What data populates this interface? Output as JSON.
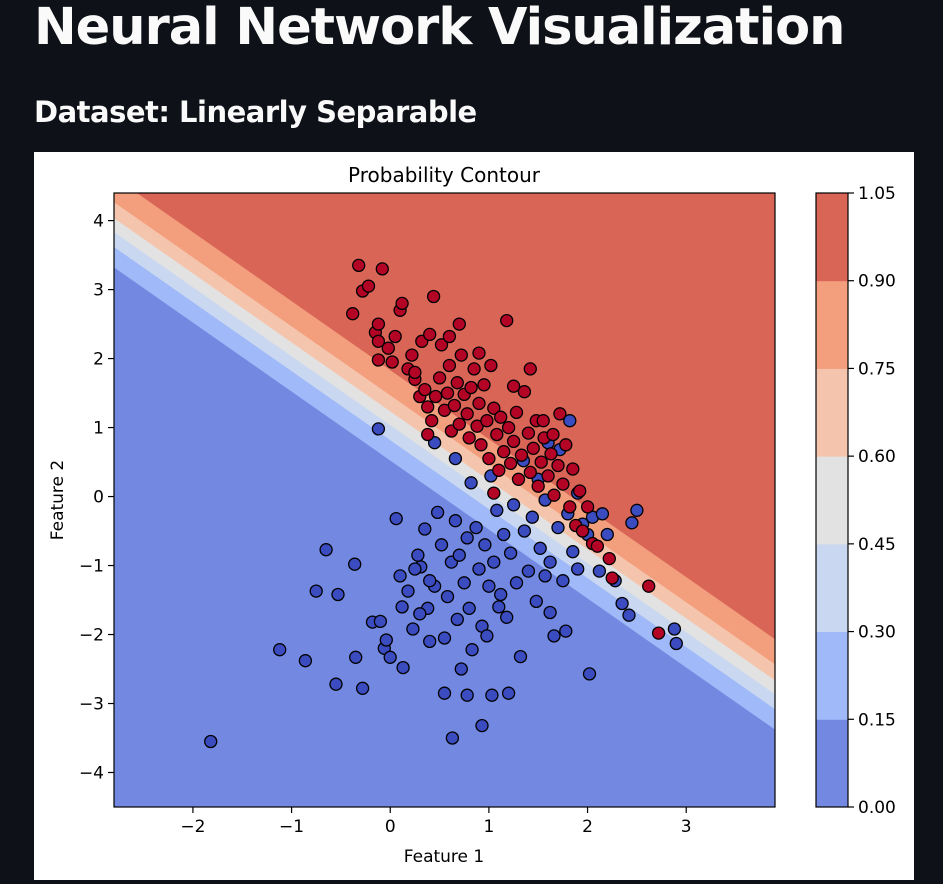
{
  "page": {
    "title": "Neural Network Visualization",
    "dataset_heading": "Dataset: Linearly Separable"
  },
  "chart_data": {
    "type": "scatter",
    "title": "Probability Contour",
    "xlabel": "Feature 1",
    "ylabel": "Feature 2",
    "xlim": [
      -2.8,
      3.9
    ],
    "ylim": [
      -4.5,
      4.4
    ],
    "x_ticks": [
      -2,
      -1,
      0,
      1,
      2,
      3
    ],
    "x_tick_labels": [
      "−2",
      "−1",
      "0",
      "1",
      "2",
      "3"
    ],
    "y_ticks": [
      -4,
      -3,
      -2,
      -1,
      0,
      1,
      2,
      3,
      4
    ],
    "y_tick_labels": [
      "−4",
      "−3",
      "−2",
      "−1",
      "0",
      "1",
      "2",
      "3",
      "4"
    ],
    "background": "filled probability contour (coolwarm)",
    "contour_levels": [
      0.0,
      0.15,
      0.3,
      0.45,
      0.6,
      0.75,
      0.9,
      1.05
    ],
    "contour_level_labels": [
      "0.00",
      "0.15",
      "0.30",
      "0.45",
      "0.60",
      "0.75",
      "0.90",
      "1.05"
    ],
    "contour_colors": [
      "#7388e0",
      "#9fb9f9",
      "#c9d7f0",
      "#e2e2e2",
      "#f5c4ac",
      "#f39f7e",
      "#d96556"
    ],
    "colorbar": {
      "position": "right"
    },
    "series": [
      {
        "class": 0,
        "color": "#3a4cc0",
        "points": [
          [
            -1.82,
            -3.55
          ],
          [
            -1.12,
            -2.22
          ],
          [
            -0.86,
            -2.38
          ],
          [
            -0.75,
            -1.37
          ],
          [
            -0.65,
            -0.77
          ],
          [
            -0.55,
            -2.72
          ],
          [
            -0.53,
            -1.42
          ],
          [
            -0.36,
            -0.98
          ],
          [
            -0.35,
            -2.33
          ],
          [
            -0.28,
            -2.78
          ],
          [
            -0.18,
            -1.82
          ],
          [
            -0.12,
            0.98
          ],
          [
            -0.1,
            -1.81
          ],
          [
            -0.06,
            -2.2
          ],
          [
            -0.04,
            -2.08
          ],
          [
            0.0,
            -2.33
          ],
          [
            0.06,
            -0.32
          ],
          [
            0.1,
            -1.15
          ],
          [
            0.12,
            -1.6
          ],
          [
            0.13,
            -2.48
          ],
          [
            0.18,
            -1.37
          ],
          [
            0.23,
            -1.92
          ],
          [
            0.28,
            -0.85
          ],
          [
            0.31,
            -1.02
          ],
          [
            0.35,
            -0.47
          ],
          [
            0.38,
            -1.62
          ],
          [
            0.4,
            -2.1
          ],
          [
            0.45,
            -1.3
          ],
          [
            0.48,
            -0.23
          ],
          [
            0.52,
            -0.7
          ],
          [
            0.55,
            -2.05
          ],
          [
            0.58,
            -1.45
          ],
          [
            0.62,
            -0.95
          ],
          [
            0.66,
            -0.35
          ],
          [
            0.68,
            -1.78
          ],
          [
            0.72,
            -2.5
          ],
          [
            0.75,
            -1.25
          ],
          [
            0.78,
            -0.6
          ],
          [
            0.8,
            -1.62
          ],
          [
            0.83,
            -2.22
          ],
          [
            0.87,
            -0.45
          ],
          [
            0.9,
            -1.05
          ],
          [
            0.93,
            -1.88
          ],
          [
            0.96,
            -0.7
          ],
          [
            1.0,
            -1.3
          ],
          [
            1.03,
            -2.88
          ],
          [
            1.05,
            -0.95
          ],
          [
            1.08,
            -0.2
          ],
          [
            1.12,
            -1.42
          ],
          [
            1.15,
            -0.55
          ],
          [
            1.18,
            -1.75
          ],
          [
            1.22,
            -0.82
          ],
          [
            1.25,
            -0.12
          ],
          [
            1.28,
            -1.25
          ],
          [
            1.32,
            -2.32
          ],
          [
            1.36,
            -0.5
          ],
          [
            1.4,
            -1.08
          ],
          [
            1.44,
            -0.3
          ],
          [
            1.48,
            -1.52
          ],
          [
            1.52,
            -0.75
          ],
          [
            1.57,
            -0.05
          ],
          [
            1.62,
            -0.95
          ],
          [
            1.66,
            -2.02
          ],
          [
            1.7,
            -0.45
          ],
          [
            1.75,
            -1.22
          ],
          [
            1.8,
            -0.25
          ],
          [
            1.85,
            -0.8
          ],
          [
            1.9,
            -1.05
          ],
          [
            1.95,
            -0.4
          ],
          [
            2.0,
            -0.55
          ],
          [
            2.05,
            -0.3
          ],
          [
            2.12,
            -1.08
          ],
          [
            2.2,
            -0.55
          ],
          [
            2.28,
            -1.22
          ],
          [
            2.35,
            -1.55
          ],
          [
            2.42,
            -1.72
          ],
          [
            2.5,
            -0.2
          ],
          [
            2.88,
            -1.92
          ],
          [
            2.9,
            -2.13
          ],
          [
            0.63,
            -3.5
          ],
          [
            0.93,
            -3.32
          ],
          [
            2.02,
            -2.57
          ],
          [
            0.78,
            -2.88
          ],
          [
            1.2,
            -2.85
          ],
          [
            0.55,
            -2.85
          ],
          [
            0.4,
            -1.22
          ],
          [
            0.7,
            -0.85
          ],
          [
            0.25,
            -1.05
          ],
          [
            1.57,
            -1.15
          ],
          [
            1.1,
            -1.6
          ],
          [
            1.78,
            -1.95
          ],
          [
            1.62,
            -1.68
          ],
          [
            0.98,
            -2.02
          ],
          [
            1.72,
            0.68
          ],
          [
            1.82,
            1.1
          ],
          [
            1.6,
            0.78
          ],
          [
            0.45,
            0.78
          ],
          [
            0.66,
            0.55
          ],
          [
            0.82,
            0.2
          ],
          [
            1.02,
            0.3
          ],
          [
            1.35,
            0.52
          ],
          [
            1.5,
            0.25
          ],
          [
            1.9,
            0.05
          ],
          [
            2.15,
            -0.25
          ],
          [
            2.45,
            -0.38
          ],
          [
            0.3,
            -1.7
          ]
        ]
      },
      {
        "class": 1,
        "color": "#b40426",
        "points": [
          [
            -0.38,
            2.65
          ],
          [
            -0.32,
            3.35
          ],
          [
            -0.28,
            2.98
          ],
          [
            -0.22,
            3.05
          ],
          [
            -0.15,
            2.38
          ],
          [
            -0.12,
            2.5
          ],
          [
            -0.12,
            2.25
          ],
          [
            -0.12,
            1.98
          ],
          [
            -0.08,
            3.3
          ],
          [
            -0.02,
            2.15
          ],
          [
            0.02,
            1.95
          ],
          [
            0.05,
            2.32
          ],
          [
            0.1,
            2.7
          ],
          [
            0.12,
            2.8
          ],
          [
            0.18,
            1.85
          ],
          [
            0.22,
            2.05
          ],
          [
            0.25,
            1.7
          ],
          [
            0.3,
            1.45
          ],
          [
            0.32,
            2.25
          ],
          [
            0.35,
            1.55
          ],
          [
            0.38,
            1.3
          ],
          [
            0.4,
            2.35
          ],
          [
            0.42,
            1.1
          ],
          [
            0.44,
            2.9
          ],
          [
            0.46,
            1.45
          ],
          [
            0.5,
            1.72
          ],
          [
            0.52,
            2.2
          ],
          [
            0.55,
            1.25
          ],
          [
            0.58,
            1.5
          ],
          [
            0.6,
            1.9
          ],
          [
            0.62,
            0.95
          ],
          [
            0.65,
            1.32
          ],
          [
            0.68,
            1.65
          ],
          [
            0.7,
            1.05
          ],
          [
            0.72,
            2.05
          ],
          [
            0.75,
            1.48
          ],
          [
            0.78,
            1.2
          ],
          [
            0.8,
            0.85
          ],
          [
            0.82,
            1.58
          ],
          [
            0.85,
            1.85
          ],
          [
            0.88,
            1.02
          ],
          [
            0.9,
            1.35
          ],
          [
            0.92,
            0.75
          ],
          [
            0.95,
            1.62
          ],
          [
            0.98,
            1.1
          ],
          [
            1.0,
            0.55
          ],
          [
            1.02,
            1.9
          ],
          [
            1.05,
            1.28
          ],
          [
            1.08,
            0.9
          ],
          [
            1.1,
            0.38
          ],
          [
            1.12,
            1.15
          ],
          [
            1.15,
            0.65
          ],
          [
            1.18,
            2.55
          ],
          [
            1.2,
            1.0
          ],
          [
            1.22,
            0.48
          ],
          [
            1.25,
            0.8
          ],
          [
            1.28,
            1.22
          ],
          [
            1.3,
            0.25
          ],
          [
            1.33,
            0.6
          ],
          [
            1.36,
            1.52
          ],
          [
            1.4,
            0.92
          ],
          [
            1.42,
            0.35
          ],
          [
            1.45,
            0.7
          ],
          [
            1.48,
            1.1
          ],
          [
            1.5,
            0.15
          ],
          [
            1.53,
            0.5
          ],
          [
            1.56,
            0.85
          ],
          [
            1.6,
            0.3
          ],
          [
            1.63,
            0.62
          ],
          [
            1.66,
            0.02
          ],
          [
            1.7,
            0.45
          ],
          [
            1.72,
            1.2
          ],
          [
            1.75,
            0.18
          ],
          [
            1.78,
            0.75
          ],
          [
            1.82,
            -0.15
          ],
          [
            1.85,
            0.4
          ],
          [
            1.88,
            -0.42
          ],
          [
            1.92,
            0.08
          ],
          [
            1.95,
            -0.5
          ],
          [
            2.0,
            -0.15
          ],
          [
            2.05,
            -0.68
          ],
          [
            2.1,
            -0.72
          ],
          [
            2.22,
            -0.9
          ],
          [
            2.25,
            -1.18
          ],
          [
            2.62,
            -1.3
          ],
          [
            2.72,
            -1.98
          ],
          [
            1.05,
            0.05
          ],
          [
            0.6,
            2.32
          ],
          [
            0.9,
            2.08
          ],
          [
            0.7,
            2.5
          ],
          [
            1.42,
            1.85
          ],
          [
            1.55,
            1.1
          ],
          [
            0.25,
            1.8
          ],
          [
            0.38,
            0.9
          ],
          [
            1.25,
            1.6
          ],
          [
            1.65,
            0.9
          ]
        ]
      }
    ]
  }
}
